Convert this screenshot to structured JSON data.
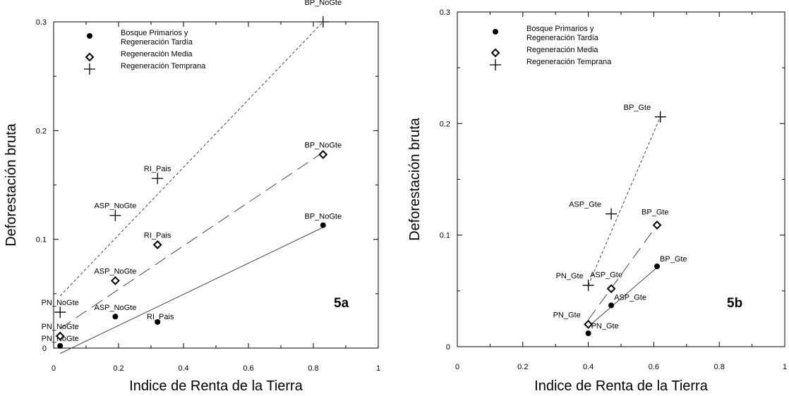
{
  "chart_data": [
    {
      "type": "scatter",
      "panel_label": "5a",
      "xlabel": "Indice de Renta de la Tierra",
      "ylabel": "Deforestación bruta",
      "xlim": [
        0,
        1
      ],
      "ylim": [
        0,
        0.3
      ],
      "xticks": [
        "0",
        "0.2",
        "0.4",
        "0.6",
        "0.8",
        "1"
      ],
      "yticks": [
        "0",
        "0.1",
        "0.2",
        "0.3"
      ],
      "legend_position": "top-left",
      "grid": false,
      "series": [
        {
          "name": "Bosque Primarios y Regeneración Tardía",
          "legend_lines": [
            "Bosque Primarios y",
            "Regeneración Tardía"
          ],
          "marker": "dot",
          "line": "solid",
          "points": [
            {
              "x": 0.02,
              "y": 0.002,
              "label": "PN_NoGte"
            },
            {
              "x": 0.19,
              "y": 0.029,
              "label": "ASP_NoGte"
            },
            {
              "x": 0.32,
              "y": 0.024,
              "label": "RI_Pais"
            },
            {
              "x": 0.83,
              "y": 0.113,
              "label": "BP_NoGte"
            }
          ],
          "trendline": {
            "from": [
              0.02,
              -0.005
            ],
            "to": [
              0.83,
              0.111
            ]
          }
        },
        {
          "name": "Regeneración Media",
          "legend_lines": [
            "Regeneración Media"
          ],
          "marker": "diamond",
          "line": "long-dash",
          "points": [
            {
              "x": 0.02,
              "y": 0.011,
              "label": "PN_NoGte"
            },
            {
              "x": 0.19,
              "y": 0.062,
              "label": "ASP_NoGte"
            },
            {
              "x": 0.32,
              "y": 0.095,
              "label": "RI_Pais"
            },
            {
              "x": 0.83,
              "y": 0.178,
              "label": "BP_NoGte"
            }
          ],
          "trendline": {
            "from": [
              0.02,
              0.018
            ],
            "to": [
              0.83,
              0.18
            ]
          }
        },
        {
          "name": "Regeneración Temprana",
          "legend_lines": [
            "Regeneración Temprana"
          ],
          "marker": "plus",
          "line": "short-dash",
          "points": [
            {
              "x": 0.02,
              "y": 0.033,
              "label": "PN_NoGte"
            },
            {
              "x": 0.19,
              "y": 0.122,
              "label": "ASP_NoGte"
            },
            {
              "x": 0.32,
              "y": 0.156,
              "label": "RI_Pais"
            },
            {
              "x": 0.83,
              "y": 0.3,
              "label": "BP_NoGte"
            }
          ],
          "trendline": {
            "from": [
              0.02,
              0.048
            ],
            "to": [
              0.83,
              0.3
            ]
          }
        }
      ]
    },
    {
      "type": "scatter",
      "panel_label": "5b",
      "xlabel": "Indice de Renta de la Tierra",
      "ylabel": "Deforestación bruta",
      "xlim": [
        0,
        1
      ],
      "ylim": [
        0,
        0.3
      ],
      "xticks": [
        "0",
        "0.2",
        "0.4",
        "0.6",
        "0.8",
        "1"
      ],
      "yticks": [
        "0",
        "0.1",
        "0.2",
        "0.3"
      ],
      "legend_position": "top-left",
      "grid": false,
      "series": [
        {
          "name": "Bosque Primarios y Regeneración Tardía",
          "legend_lines": [
            "Bosque Primarios y",
            "Regeneración Tardía"
          ],
          "marker": "dot",
          "line": "solid",
          "points": [
            {
              "x": 0.4,
              "y": 0.012,
              "label": "PN_Gte"
            },
            {
              "x": 0.47,
              "y": 0.037,
              "label": "ASP_Gte"
            },
            {
              "x": 0.61,
              "y": 0.072,
              "label": "BP_Gte"
            }
          ],
          "trendline": {
            "from": [
              0.4,
              0.018
            ],
            "to": [
              0.61,
              0.071
            ]
          }
        },
        {
          "name": "Regeneración Media",
          "legend_lines": [
            "Regeneración Media"
          ],
          "marker": "diamond",
          "line": "long-dash",
          "points": [
            {
              "x": 0.4,
              "y": 0.02,
              "label": "PN_Gte"
            },
            {
              "x": 0.47,
              "y": 0.052,
              "label": "ASP_Gte"
            },
            {
              "x": 0.61,
              "y": 0.109,
              "label": "BP_Gte"
            }
          ],
          "trendline": {
            "from": [
              0.4,
              0.024
            ],
            "to": [
              0.61,
              0.109
            ]
          }
        },
        {
          "name": "Regeneración Temprana",
          "legend_lines": [
            "Regeneración Temprana"
          ],
          "marker": "plus",
          "line": "short-dash",
          "points": [
            {
              "x": 0.4,
              "y": 0.055,
              "label": "PN_Gte"
            },
            {
              "x": 0.47,
              "y": 0.119,
              "label": "ASP_Gte"
            },
            {
              "x": 0.62,
              "y": 0.206,
              "label": "BP_Gte"
            }
          ],
          "trendline": {
            "from": [
              0.4,
              0.055
            ],
            "to": [
              0.62,
              0.206
            ]
          }
        }
      ]
    }
  ]
}
